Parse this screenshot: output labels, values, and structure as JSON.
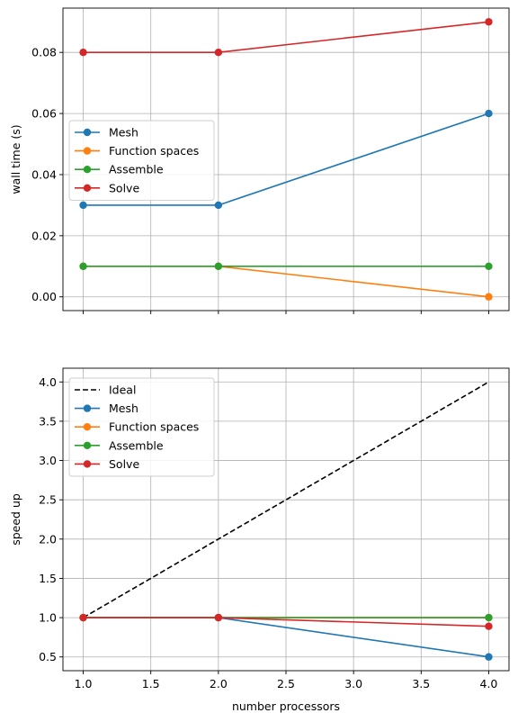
{
  "chart_data": [
    {
      "type": "line",
      "ylabel": "wall time (s)",
      "xlabel": "",
      "xlim": [
        0.85,
        4.15
      ],
      "ylim": [
        -0.0045,
        0.0945
      ],
      "grid": true,
      "legend_position": "center-left",
      "x_ticks": [
        1.0,
        1.5,
        2.0,
        2.5,
        3.0,
        3.5,
        4.0
      ],
      "y_ticks": [
        0.0,
        0.02,
        0.04,
        0.06,
        0.08
      ],
      "y_tick_labels": [
        "0.00",
        "0.02",
        "0.04",
        "0.06",
        "0.08"
      ],
      "show_x_tick_labels": false,
      "series": [
        {
          "name": "Mesh",
          "color": "#1f77b4",
          "style": "solid-marker",
          "x": [
            1,
            2,
            4
          ],
          "y": [
            0.03,
            0.03,
            0.06
          ]
        },
        {
          "name": "Function spaces",
          "color": "#ff7f0e",
          "style": "solid-marker",
          "x": [
            1,
            2,
            4
          ],
          "y": [
            0.01,
            0.01,
            0.0
          ]
        },
        {
          "name": "Assemble",
          "color": "#2ca02c",
          "style": "solid-marker",
          "x": [
            1,
            2,
            4
          ],
          "y": [
            0.01,
            0.01,
            0.01
          ]
        },
        {
          "name": "Solve",
          "color": "#d62728",
          "style": "solid-marker",
          "x": [
            1,
            2,
            4
          ],
          "y": [
            0.08,
            0.08,
            0.09
          ]
        }
      ]
    },
    {
      "type": "line",
      "ylabel": "speed up",
      "xlabel": "number processors",
      "xlim": [
        0.85,
        4.15
      ],
      "ylim": [
        0.325,
        4.175
      ],
      "grid": true,
      "legend_position": "upper-left",
      "x_ticks": [
        1.0,
        1.5,
        2.0,
        2.5,
        3.0,
        3.5,
        4.0
      ],
      "x_tick_labels": [
        "1.0",
        "1.5",
        "2.0",
        "2.5",
        "3.0",
        "3.5",
        "4.0"
      ],
      "y_ticks": [
        0.5,
        1.0,
        1.5,
        2.0,
        2.5,
        3.0,
        3.5,
        4.0
      ],
      "y_tick_labels": [
        "0.5",
        "1.0",
        "1.5",
        "2.0",
        "2.5",
        "3.0",
        "3.5",
        "4.0"
      ],
      "show_x_tick_labels": true,
      "series": [
        {
          "name": "Ideal",
          "color": "#000000",
          "style": "dashed",
          "x": [
            1,
            2,
            4
          ],
          "y": [
            1,
            2,
            4
          ]
        },
        {
          "name": "Mesh",
          "color": "#1f77b4",
          "style": "solid-marker",
          "x": [
            1,
            2,
            4
          ],
          "y": [
            1.0,
            1.0,
            0.5
          ]
        },
        {
          "name": "Function spaces",
          "color": "#ff7f0e",
          "style": "solid-marker",
          "x": [
            1,
            2,
            4
          ],
          "y": [
            1.0,
            1.0,
            1.0
          ]
        },
        {
          "name": "Assemble",
          "color": "#2ca02c",
          "style": "solid-marker",
          "x": [
            1,
            2,
            4
          ],
          "y": [
            1.0,
            1.0,
            1.0
          ]
        },
        {
          "name": "Solve",
          "color": "#d62728",
          "style": "solid-marker",
          "x": [
            1,
            2,
            4
          ],
          "y": [
            1.0,
            1.0,
            0.89
          ]
        }
      ]
    }
  ]
}
